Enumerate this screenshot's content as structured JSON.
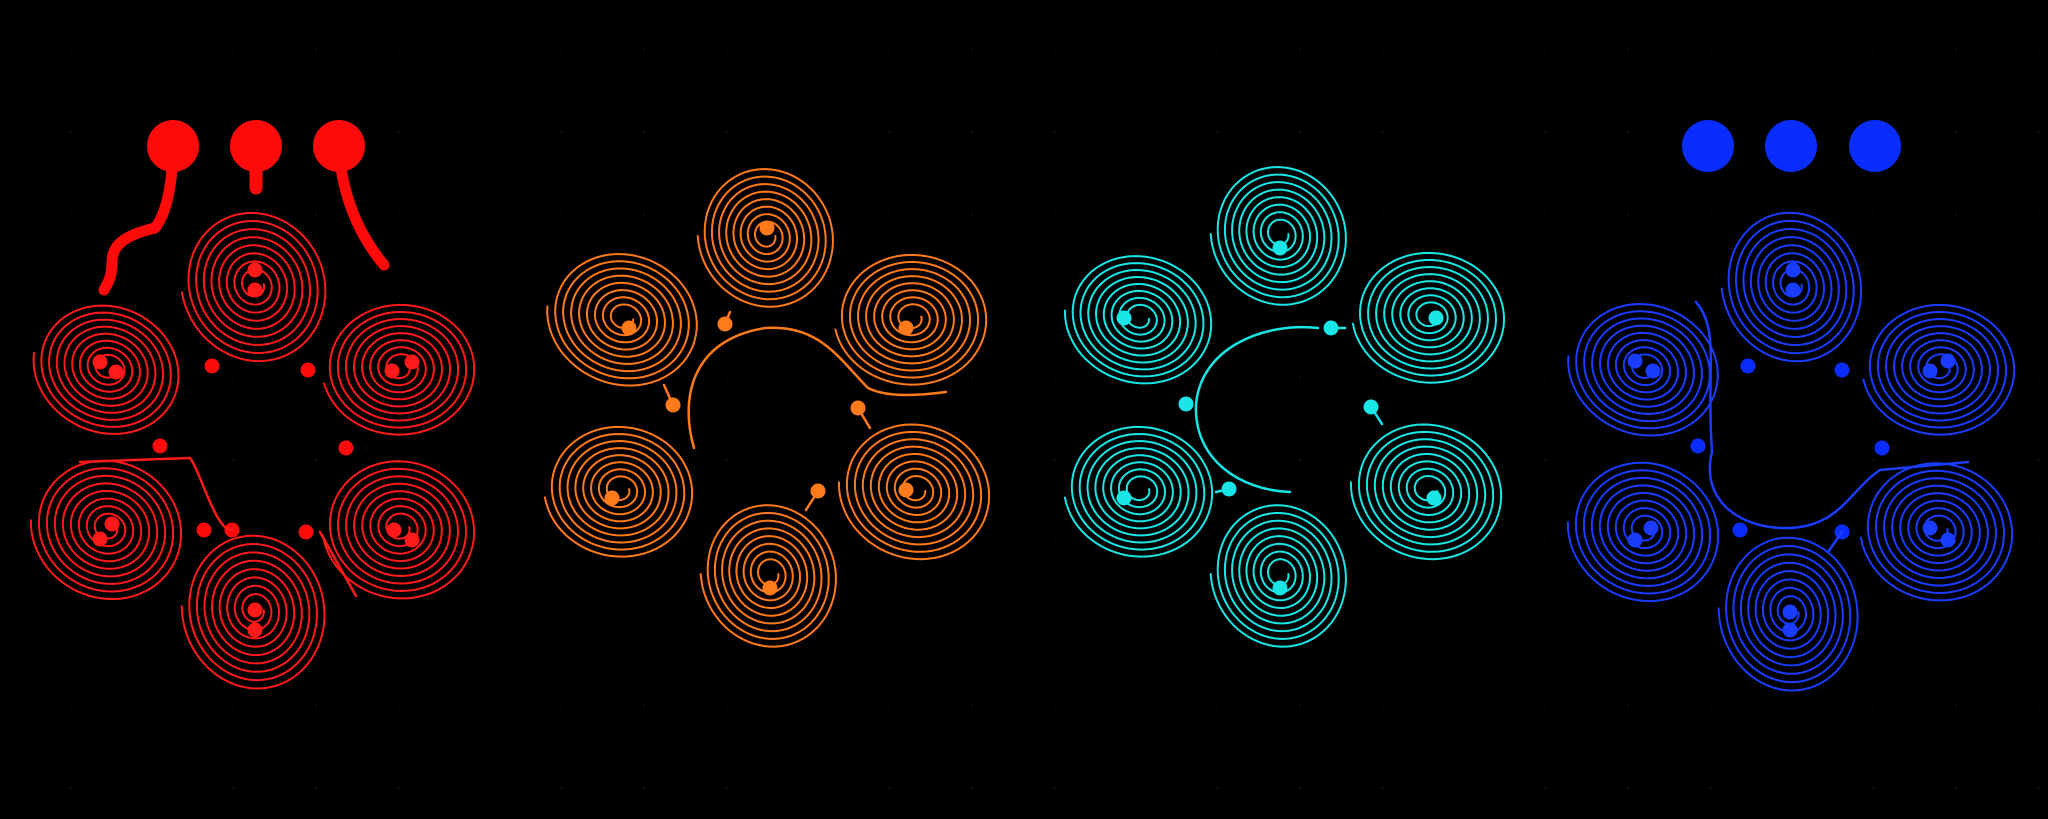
{
  "layers": [
    {
      "id": "layer-1",
      "color": "#ff1a1a",
      "pad_color": "#ff0a0a",
      "coil_count": 6,
      "has_top_pads": true
    },
    {
      "id": "layer-2",
      "color": "#ff7a1a",
      "pad_color": "#ff7a1a",
      "coil_count": 6,
      "has_top_pads": false
    },
    {
      "id": "layer-3",
      "color": "#19e6e6",
      "pad_color": "#19e6e6",
      "coil_count": 6,
      "has_top_pads": false
    },
    {
      "id": "layer-4",
      "color": "#1a3cff",
      "pad_color": "#0a2dff",
      "coil_count": 6,
      "has_top_pads": true
    }
  ],
  "background": "#000000",
  "grid_dot_color": "#1a1a1a"
}
